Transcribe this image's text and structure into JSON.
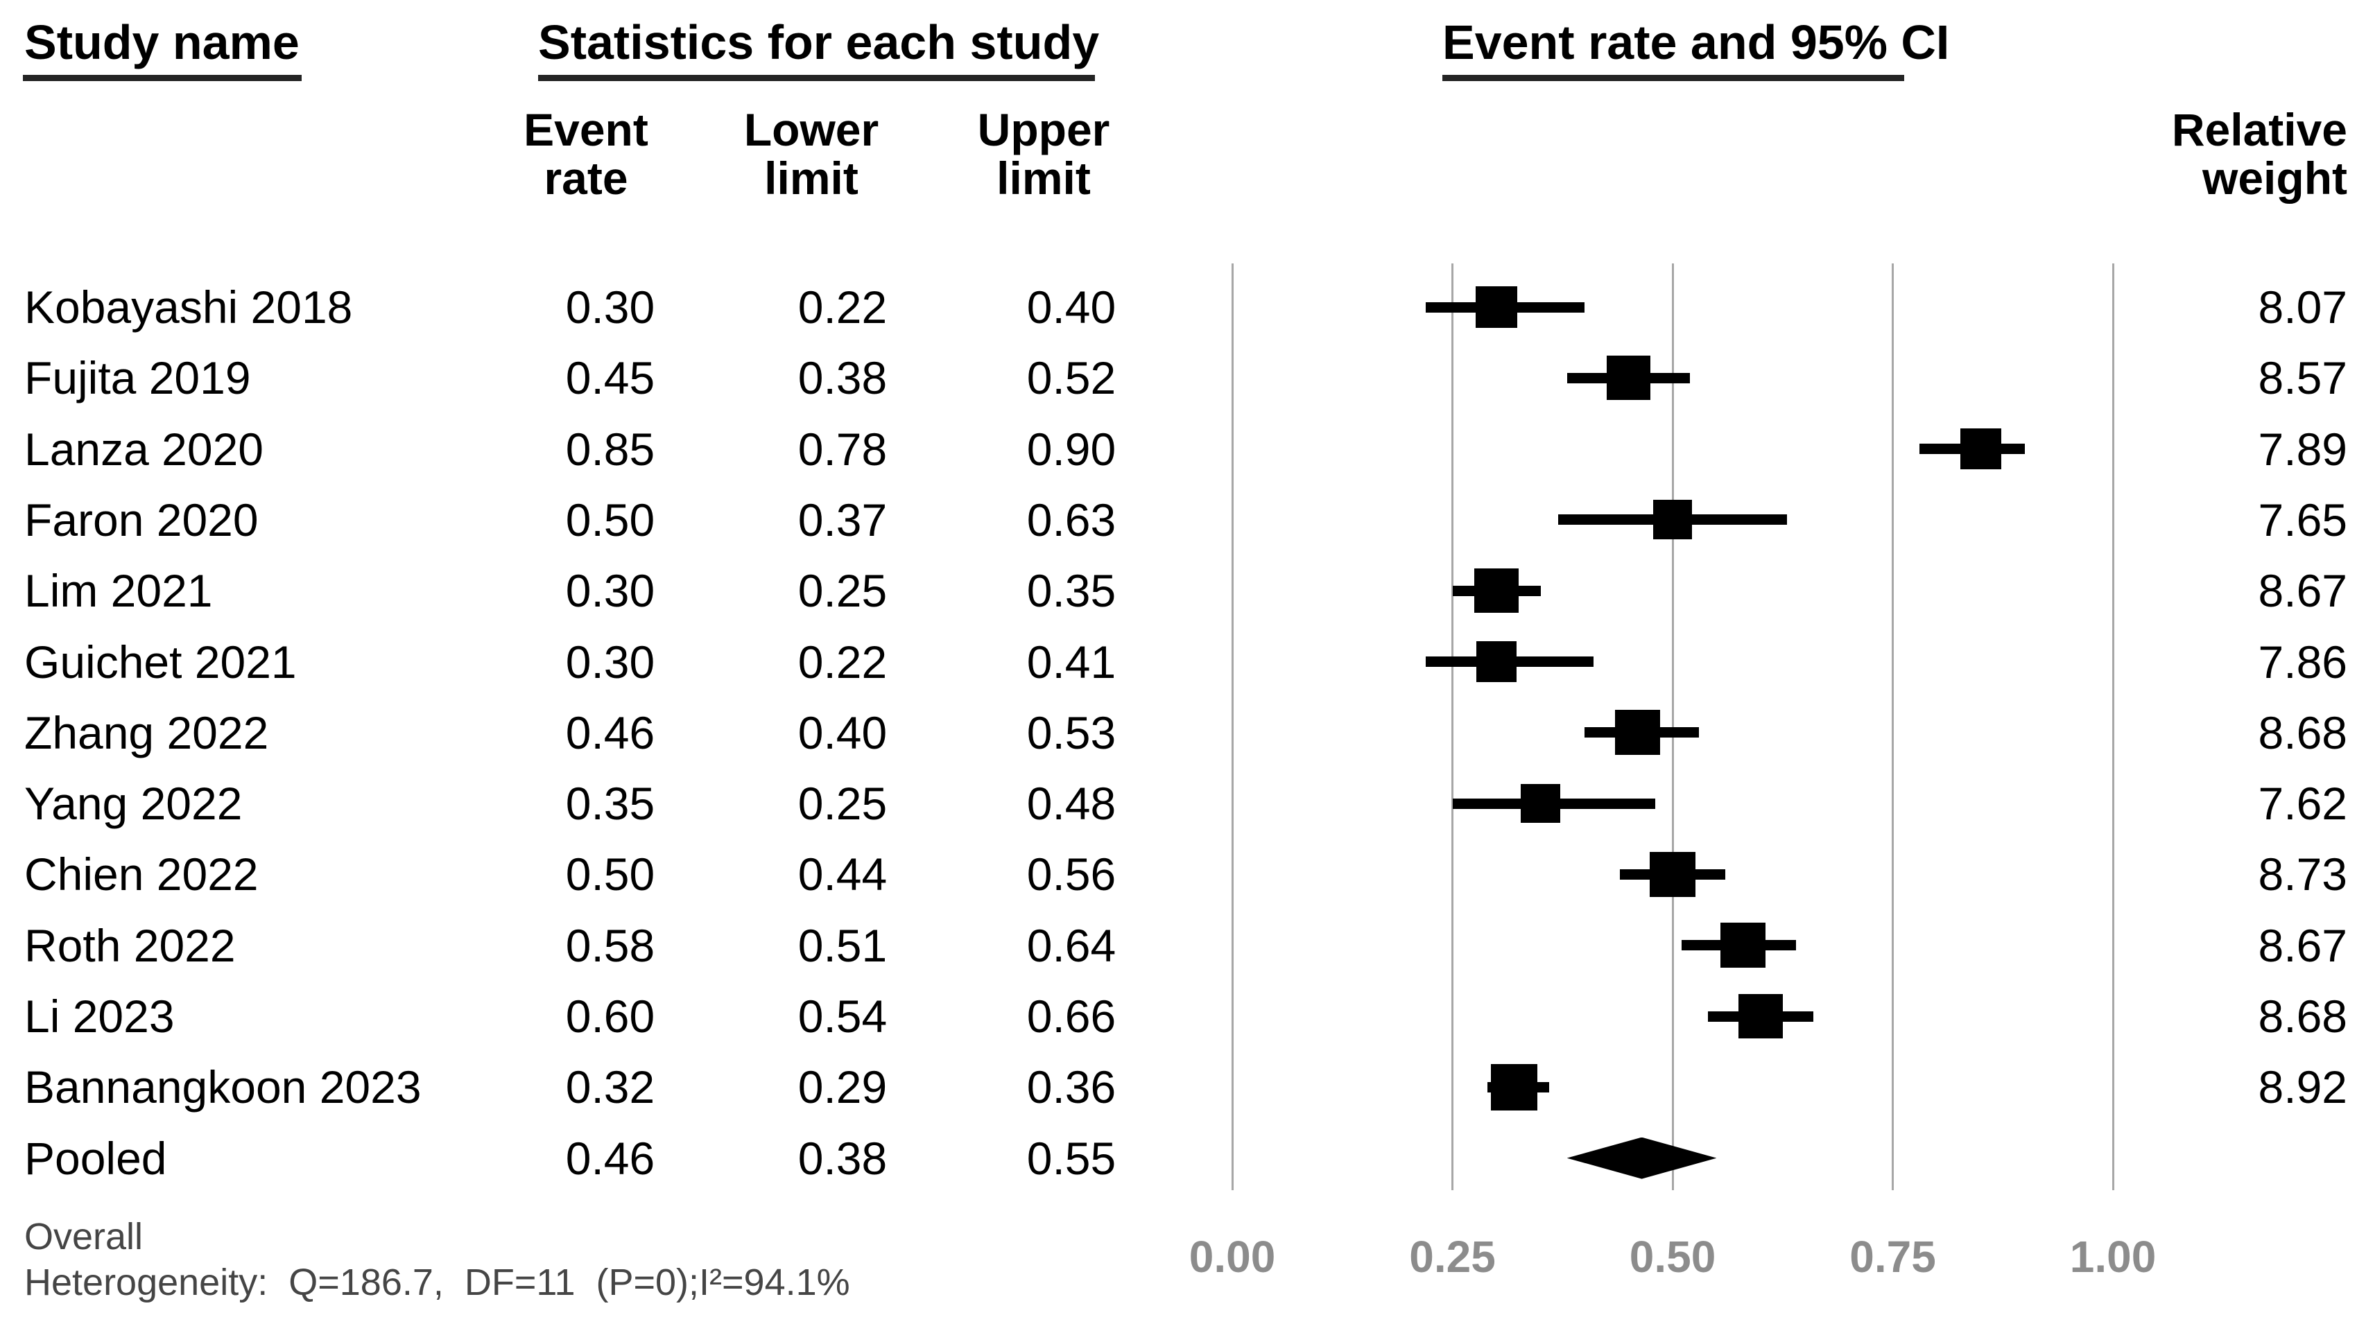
{
  "headers": {
    "study_name": "Study name",
    "statistics": "Statistics for each study",
    "plot": "Event rate and 95% CI",
    "col_event_rate": "Event\nrate",
    "col_lower": "Lower\nlimit",
    "col_upper": "Upper\nlimit",
    "col_weight": "Relative\nweight"
  },
  "footer": {
    "overall_label": "Overall",
    "heterogeneity": "Heterogeneity:  Q=186.7,  DF=11  (P=0);I²=94.1%"
  },
  "colors": {
    "text": "#000000",
    "footer_text": "#454545",
    "axis_label": "#8c8c8c",
    "gridline": "#a7a7a7",
    "marker": "#000000",
    "underline": "#242424",
    "background": "#ffffff"
  },
  "chart_data": {
    "type": "forest",
    "title": "Event rate and 95% CI",
    "effect_measure": "Event rate",
    "x_axis": {
      "range": [
        0,
        1
      ],
      "ticks": [
        0,
        0.25,
        0.5,
        0.75,
        1
      ],
      "tick_labels": [
        "0.00",
        "0.25",
        "0.50",
        "0.75",
        "1.00"
      ],
      "grid": true
    },
    "columns": [
      "Study name",
      "Event rate",
      "Lower limit",
      "Upper limit",
      "Relative weight"
    ],
    "studies": [
      {
        "name": "Kobayashi 2018",
        "event_rate": 0.3,
        "lower": 0.22,
        "upper": 0.4,
        "weight": 8.07,
        "labels": {
          "event_rate": "0.30",
          "lower": "0.22",
          "upper": "0.40",
          "weight": "8.07"
        }
      },
      {
        "name": "Fujita 2019",
        "event_rate": 0.45,
        "lower": 0.38,
        "upper": 0.52,
        "weight": 8.57,
        "labels": {
          "event_rate": "0.45",
          "lower": "0.38",
          "upper": "0.52",
          "weight": "8.57"
        }
      },
      {
        "name": "Lanza 2020",
        "event_rate": 0.85,
        "lower": 0.78,
        "upper": 0.9,
        "weight": 7.89,
        "labels": {
          "event_rate": "0.85",
          "lower": "0.78",
          "upper": "0.90",
          "weight": "7.89"
        }
      },
      {
        "name": "Faron 2020",
        "event_rate": 0.5,
        "lower": 0.37,
        "upper": 0.63,
        "weight": 7.65,
        "labels": {
          "event_rate": "0.50",
          "lower": "0.37",
          "upper": "0.63",
          "weight": "7.65"
        }
      },
      {
        "name": "Lim 2021",
        "event_rate": 0.3,
        "lower": 0.25,
        "upper": 0.35,
        "weight": 8.67,
        "labels": {
          "event_rate": "0.30",
          "lower": "0.25",
          "upper": "0.35",
          "weight": "8.67"
        }
      },
      {
        "name": "Guichet 2021",
        "event_rate": 0.3,
        "lower": 0.22,
        "upper": 0.41,
        "weight": 7.86,
        "labels": {
          "event_rate": "0.30",
          "lower": "0.22",
          "upper": "0.41",
          "weight": "7.86"
        }
      },
      {
        "name": "Zhang 2022",
        "event_rate": 0.46,
        "lower": 0.4,
        "upper": 0.53,
        "weight": 8.68,
        "labels": {
          "event_rate": "0.46",
          "lower": "0.40",
          "upper": "0.53",
          "weight": "8.68"
        }
      },
      {
        "name": "Yang 2022",
        "event_rate": 0.35,
        "lower": 0.25,
        "upper": 0.48,
        "weight": 7.62,
        "labels": {
          "event_rate": "0.35",
          "lower": "0.25",
          "upper": "0.48",
          "weight": "7.62"
        }
      },
      {
        "name": "Chien 2022",
        "event_rate": 0.5,
        "lower": 0.44,
        "upper": 0.56,
        "weight": 8.73,
        "labels": {
          "event_rate": "0.50",
          "lower": "0.44",
          "upper": "0.56",
          "weight": "8.73"
        }
      },
      {
        "name": "Roth 2022",
        "event_rate": 0.58,
        "lower": 0.51,
        "upper": 0.64,
        "weight": 8.67,
        "labels": {
          "event_rate": "0.58",
          "lower": "0.51",
          "upper": "0.64",
          "weight": "8.67"
        }
      },
      {
        "name": "Li 2023",
        "event_rate": 0.6,
        "lower": 0.54,
        "upper": 0.66,
        "weight": 8.68,
        "labels": {
          "event_rate": "0.60",
          "lower": "0.54",
          "upper": "0.66",
          "weight": "8.68"
        }
      },
      {
        "name": "Bannangkoon 2023",
        "event_rate": 0.32,
        "lower": 0.29,
        "upper": 0.36,
        "weight": 8.92,
        "labels": {
          "event_rate": "0.32",
          "lower": "0.29",
          "upper": "0.36",
          "weight": "8.92"
        }
      }
    ],
    "pooled": {
      "name": "Pooled",
      "event_rate": 0.46,
      "lower": 0.38,
      "upper": 0.55,
      "labels": {
        "event_rate": "0.46",
        "lower": "0.38",
        "upper": "0.55",
        "weight": ""
      }
    },
    "heterogeneity": {
      "Q": 186.7,
      "DF": 11,
      "P": 0,
      "I2_percent": 94.1
    }
  }
}
